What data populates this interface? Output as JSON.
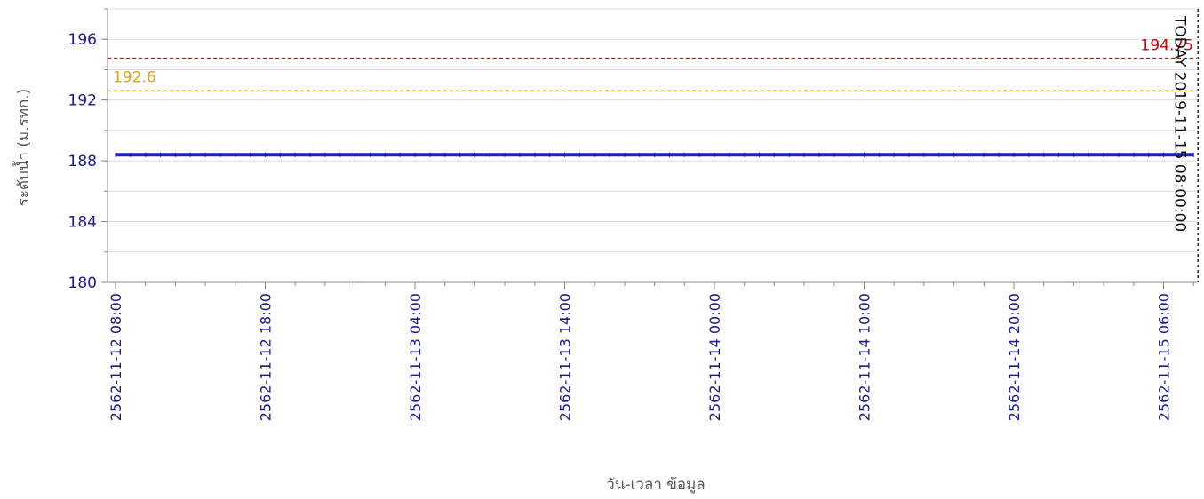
{
  "chart_data": {
    "type": "line",
    "ylabel": "ระดับน้ำ (ม.รทก.)",
    "xlabel": "วัน-เวลา ข้อมูล",
    "ylim": [
      180,
      198
    ],
    "y_ticks": [
      "180",
      "184",
      "188",
      "192",
      "196"
    ],
    "y_tick_values": [
      180,
      184,
      188,
      192,
      196
    ],
    "x_ticks": [
      "2562-11-12 08:00",
      "2562-11-12 18:00",
      "2562-11-13 04:00",
      "2562-11-13 14:00",
      "2562-11-14 00:00",
      "2562-11-14 10:00",
      "2562-11-14 20:00",
      "2562-11-15 06:00"
    ],
    "x_tick_hours": [
      0,
      10,
      20,
      30,
      40,
      50,
      60,
      70
    ],
    "grid": true,
    "series": [
      {
        "color": "#2222cc",
        "x_hours": [
          0,
          72
        ],
        "values": [
          188.4,
          188.4
        ]
      }
    ],
    "reference_lines": [
      {
        "label": "194.75",
        "value": 194.75,
        "color": "#aa2222",
        "label_color": "#cc0000"
      },
      {
        "label": "192.6",
        "value": 192.6,
        "color": "#e0a020",
        "label_color": "#e0a020"
      }
    ],
    "current_marker": {
      "label": "TODAY 2019-11-15 08:00:00",
      "x_hours": 72.3,
      "color": "#222222"
    }
  }
}
